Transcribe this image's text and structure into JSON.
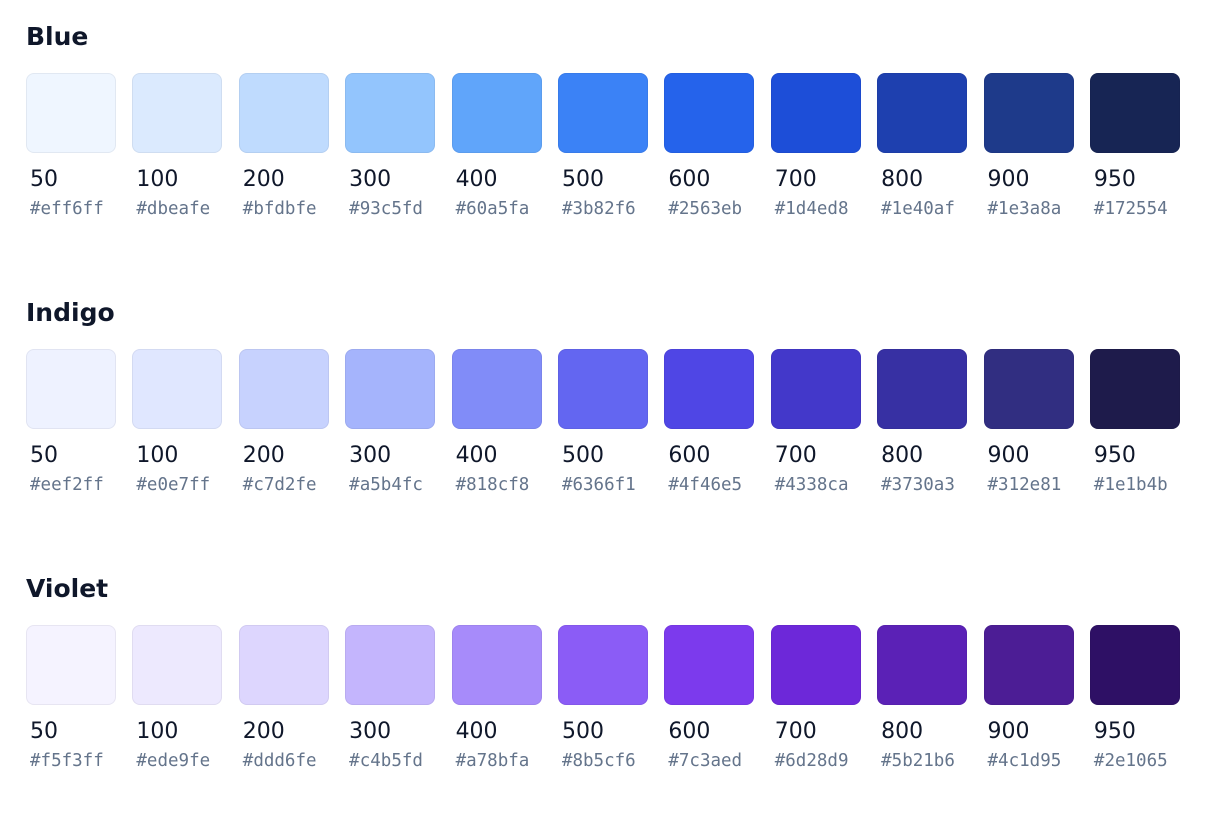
{
  "palettes": [
    {
      "name": "Blue",
      "swatches": [
        {
          "shade": "50",
          "hex": "#eff6ff"
        },
        {
          "shade": "100",
          "hex": "#dbeafe"
        },
        {
          "shade": "200",
          "hex": "#bfdbfe"
        },
        {
          "shade": "300",
          "hex": "#93c5fd"
        },
        {
          "shade": "400",
          "hex": "#60a5fa"
        },
        {
          "shade": "500",
          "hex": "#3b82f6"
        },
        {
          "shade": "600",
          "hex": "#2563eb"
        },
        {
          "shade": "700",
          "hex": "#1d4ed8"
        },
        {
          "shade": "800",
          "hex": "#1e40af"
        },
        {
          "shade": "900",
          "hex": "#1e3a8a"
        },
        {
          "shade": "950",
          "hex": "#172554"
        }
      ]
    },
    {
      "name": "Indigo",
      "swatches": [
        {
          "shade": "50",
          "hex": "#eef2ff"
        },
        {
          "shade": "100",
          "hex": "#e0e7ff"
        },
        {
          "shade": "200",
          "hex": "#c7d2fe"
        },
        {
          "shade": "300",
          "hex": "#a5b4fc"
        },
        {
          "shade": "400",
          "hex": "#818cf8"
        },
        {
          "shade": "500",
          "hex": "#6366f1"
        },
        {
          "shade": "600",
          "hex": "#4f46e5"
        },
        {
          "shade": "700",
          "hex": "#4338ca"
        },
        {
          "shade": "800",
          "hex": "#3730a3"
        },
        {
          "shade": "900",
          "hex": "#312e81"
        },
        {
          "shade": "950",
          "hex": "#1e1b4b"
        }
      ]
    },
    {
      "name": "Violet",
      "swatches": [
        {
          "shade": "50",
          "hex": "#f5f3ff"
        },
        {
          "shade": "100",
          "hex": "#ede9fe"
        },
        {
          "shade": "200",
          "hex": "#ddd6fe"
        },
        {
          "shade": "300",
          "hex": "#c4b5fd"
        },
        {
          "shade": "400",
          "hex": "#a78bfa"
        },
        {
          "shade": "500",
          "hex": "#8b5cf6"
        },
        {
          "shade": "600",
          "hex": "#7c3aed"
        },
        {
          "shade": "700",
          "hex": "#6d28d9"
        },
        {
          "shade": "800",
          "hex": "#5b21b6"
        },
        {
          "shade": "900",
          "hex": "#4c1d95"
        },
        {
          "shade": "950",
          "hex": "#2e1065"
        }
      ]
    }
  ]
}
